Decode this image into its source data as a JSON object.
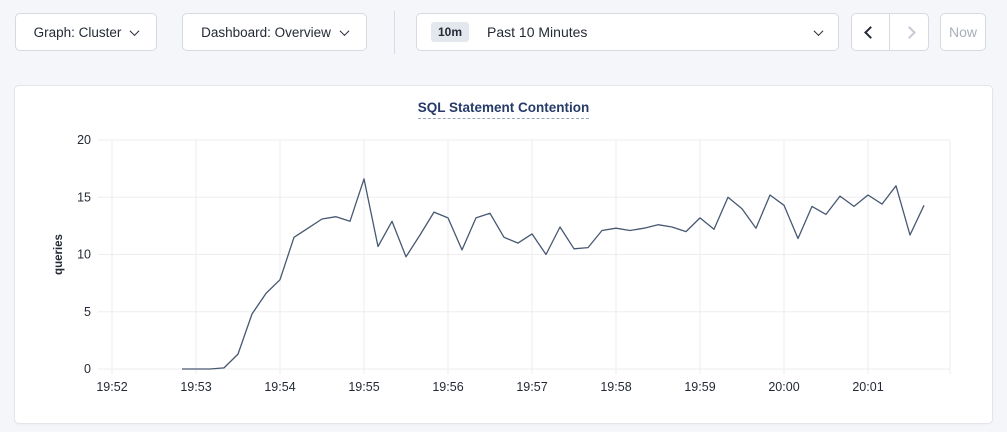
{
  "toolbar": {
    "graph_dropdown_label": "Graph: Cluster",
    "dashboard_dropdown_label": "Dashboard: Overview",
    "time_range_badge": "10m",
    "time_range_label": "Past 10 Minutes",
    "now_label": "Now"
  },
  "chart_data": {
    "type": "line",
    "title": "SQL Statement Contention",
    "xlabel": "",
    "ylabel": "queries",
    "ylim": [
      0,
      20
    ],
    "yticks": [
      0,
      5,
      10,
      15,
      20
    ],
    "xticks": [
      "19:52",
      "19:53",
      "19:54",
      "19:55",
      "19:56",
      "19:57",
      "19:58",
      "19:59",
      "20:00",
      "20:01"
    ],
    "grid": true,
    "legend_position": "none",
    "series": [
      {
        "name": "SQL Statement Contention",
        "color": "#475872",
        "points": [
          [
            "19:52:50",
            0
          ],
          [
            "19:53:00",
            0
          ],
          [
            "19:53:10",
            0
          ],
          [
            "19:53:20",
            0.1
          ],
          [
            "19:53:30",
            1.3
          ],
          [
            "19:53:40",
            4.8
          ],
          [
            "19:53:50",
            6.6
          ],
          [
            "19:54:00",
            7.8
          ],
          [
            "19:54:10",
            11.5
          ],
          [
            "19:54:20",
            12.3
          ],
          [
            "19:54:30",
            13.1
          ],
          [
            "19:54:40",
            13.3
          ],
          [
            "19:54:50",
            12.9
          ],
          [
            "19:55:00",
            16.6
          ],
          [
            "19:55:10",
            10.7
          ],
          [
            "19:55:20",
            12.9
          ],
          [
            "19:55:30",
            9.8
          ],
          [
            "19:55:40",
            11.7
          ],
          [
            "19:55:50",
            13.7
          ],
          [
            "19:56:00",
            13.2
          ],
          [
            "19:56:10",
            10.4
          ],
          [
            "19:56:20",
            13.2
          ],
          [
            "19:56:30",
            13.6
          ],
          [
            "19:56:40",
            11.5
          ],
          [
            "19:56:50",
            11.0
          ],
          [
            "19:57:00",
            11.8
          ],
          [
            "19:57:10",
            10.0
          ],
          [
            "19:57:20",
            12.4
          ],
          [
            "19:57:30",
            10.5
          ],
          [
            "19:57:40",
            10.6
          ],
          [
            "19:57:50",
            12.1
          ],
          [
            "19:58:00",
            12.3
          ],
          [
            "19:58:10",
            12.1
          ],
          [
            "19:58:20",
            12.3
          ],
          [
            "19:58:30",
            12.6
          ],
          [
            "19:58:40",
            12.4
          ],
          [
            "19:58:50",
            12.0
          ],
          [
            "19:59:00",
            13.2
          ],
          [
            "19:59:10",
            12.2
          ],
          [
            "19:59:20",
            15.0
          ],
          [
            "19:59:30",
            14.0
          ],
          [
            "19:59:40",
            12.3
          ],
          [
            "19:59:50",
            15.2
          ],
          [
            "20:00:00",
            14.3
          ],
          [
            "20:00:10",
            11.4
          ],
          [
            "20:00:20",
            14.2
          ],
          [
            "20:00:30",
            13.5
          ],
          [
            "20:00:40",
            15.1
          ],
          [
            "20:00:50",
            14.2
          ],
          [
            "20:01:00",
            15.2
          ],
          [
            "20:01:10",
            14.4
          ],
          [
            "20:01:20",
            16.0
          ],
          [
            "20:01:30",
            11.7
          ],
          [
            "20:01:40",
            14.3
          ]
        ]
      }
    ]
  },
  "colors": {
    "page_bg": "#f5f6fa",
    "panel_bg": "#ffffff",
    "panel_border": "#e3e5ea",
    "control_border": "#d6d9e0",
    "text_dark": "#242a35",
    "title_navy": "#263b69",
    "disabled_text": "#a8aeba",
    "disabled_icon": "#c6cad4",
    "badge_bg": "#e4e7ee",
    "gridline": "#ededf0",
    "tick_text": "#242a35",
    "series_line": "#475872"
  }
}
